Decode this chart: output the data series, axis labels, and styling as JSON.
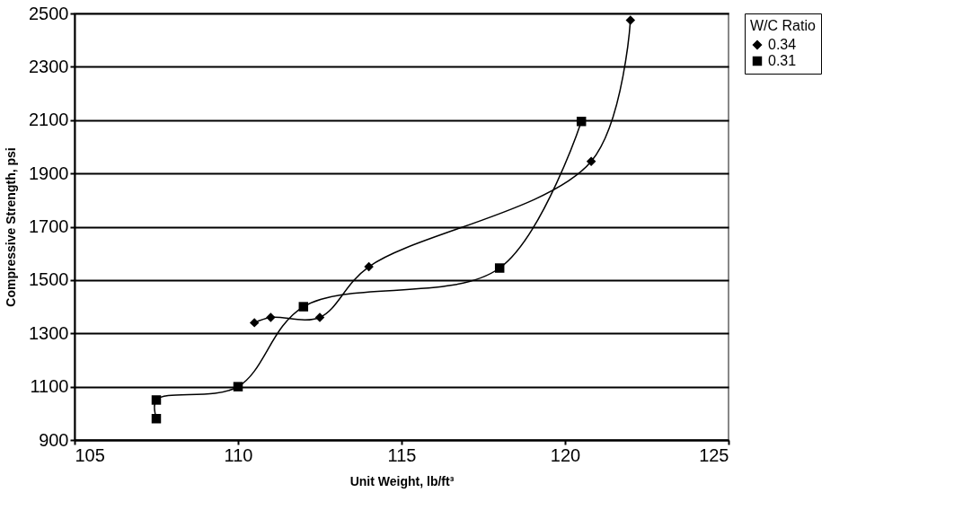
{
  "chart_data": {
    "type": "line",
    "xlabel": "Unit Weight, lb/ft³",
    "ylabel": "Compressive Strength, psi",
    "legend_title": "W/C Ratio",
    "series": [
      {
        "name": "0.34",
        "color": "#000000",
        "marker": "diamond",
        "x": [
          110.5,
          111.0,
          112.5,
          114.0,
          120.8,
          122.0
        ],
        "values": [
          1340,
          1360,
          1360,
          1550,
          1945,
          2475
        ]
      },
      {
        "name": "0.31",
        "color": "#000000",
        "marker": "square",
        "x": [
          107.5,
          107.5,
          110.0,
          112.0,
          118.0,
          120.5
        ],
        "values": [
          980,
          1050,
          1100,
          1400,
          1545,
          2095
        ]
      }
    ],
    "xlim": [
      105,
      125
    ],
    "xticks": [
      105,
      110,
      115,
      120,
      125
    ],
    "ylim": [
      900,
      2500
    ],
    "yticks": [
      900,
      1100,
      1300,
      1500,
      1700,
      1900,
      2100,
      2300,
      2500
    ],
    "grid": "y",
    "legend": "right",
    "line_style": "solid"
  }
}
